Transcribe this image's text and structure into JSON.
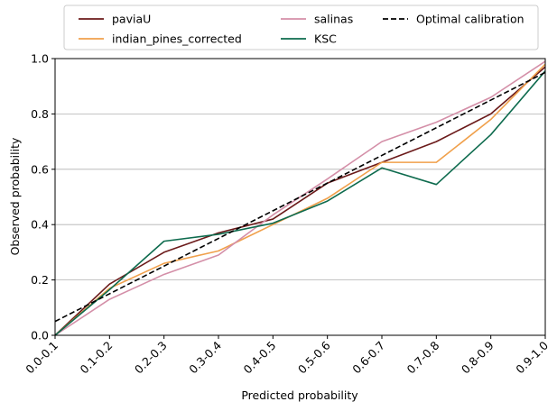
{
  "chart_data": {
    "type": "line",
    "title": "",
    "xlabel": "Predicted probability",
    "ylabel": "Observed probability",
    "categories": [
      "0.0-0.1",
      "0.1-0.2",
      "0.2-0.3",
      "0.3-0.4",
      "0.4-0.5",
      "0.5-0.6",
      "0.6-0.7",
      "0.7-0.8",
      "0.8-0.9",
      "0.9-1.0"
    ],
    "ylim": [
      0,
      1.0
    ],
    "yticks": [
      0.0,
      0.2,
      0.4,
      0.6,
      0.8,
      1.0
    ],
    "ytick_labels": [
      "0.0",
      "0.2",
      "0.4",
      "0.6",
      "0.8",
      "1.0"
    ],
    "grid": "horizontal",
    "legend_position": "top-center, outside",
    "series": [
      {
        "name": "paviaU",
        "color": "#6b1a1a",
        "dashed": false,
        "values": [
          0.0,
          0.185,
          0.3,
          0.37,
          0.42,
          0.55,
          0.625,
          0.7,
          0.8,
          0.97
        ]
      },
      {
        "name": "indian_pines_corrected",
        "color": "#f0a04b",
        "dashed": false,
        "values": [
          0.0,
          0.17,
          0.26,
          0.305,
          0.4,
          0.495,
          0.625,
          0.625,
          0.78,
          0.98
        ]
      },
      {
        "name": "salinas",
        "color": "#d48fa8",
        "dashed": false,
        "values": [
          0.0,
          0.13,
          0.22,
          0.29,
          0.435,
          0.565,
          0.7,
          0.77,
          0.86,
          0.99
        ]
      },
      {
        "name": "KSC",
        "color": "#0e6b4e",
        "dashed": false,
        "values": [
          0.0,
          0.165,
          0.34,
          0.365,
          0.405,
          0.485,
          0.605,
          0.545,
          0.725,
          0.955
        ]
      },
      {
        "name": "Optimal calibration",
        "color": "#000000",
        "dashed": true,
        "values": [
          0.05,
          0.15,
          0.25,
          0.35,
          0.45,
          0.55,
          0.65,
          0.75,
          0.85,
          0.95
        ]
      }
    ]
  }
}
